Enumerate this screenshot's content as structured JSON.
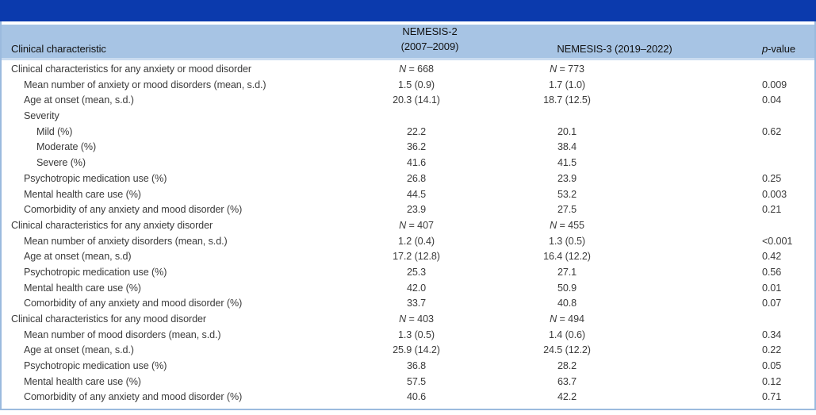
{
  "colors": {
    "title_bar_blue": "#0b3aad",
    "header_blue": "#a7c4e4",
    "frame_border_blue": "#9bbade",
    "header_underline_blue": "#cbdcf0",
    "body_text": "#3b3b3b"
  },
  "table": {
    "header": {
      "characteristic": "Clinical characteristic",
      "nemesis2_line1": "NEMESIS-2",
      "nemesis2_line2": "(2007–2009)",
      "nemesis3": "NEMESIS-3 (2019–2022)",
      "p_italic": "p",
      "p_rest": "-value"
    },
    "rows": [
      {
        "label": "Clinical characteristics for any anxiety or mood disorder",
        "indent": 0,
        "nemesis2": "N = 668",
        "nemesis3": "N = 773",
        "p_value": ""
      },
      {
        "label": "Mean number of anxiety or mood disorders (mean, s.d.)",
        "indent": 1,
        "nemesis2": "1.5 (0.9)",
        "nemesis3": "1.7 (1.0)",
        "p_value": "0.009"
      },
      {
        "label": "Age at onset (mean, s.d.)",
        "indent": 1,
        "nemesis2": "20.3 (14.1)",
        "nemesis3": "18.7 (12.5)",
        "p_value": "0.04"
      },
      {
        "label": "Severity",
        "indent": 1,
        "nemesis2": "",
        "nemesis3": "",
        "p_value": ""
      },
      {
        "label": "Mild (%)",
        "indent": 2,
        "nemesis2": "22.2",
        "nemesis3": "20.1",
        "p_value": "0.62"
      },
      {
        "label": "Moderate (%)",
        "indent": 2,
        "nemesis2": "36.2",
        "nemesis3": "38.4",
        "p_value": ""
      },
      {
        "label": "Severe (%)",
        "indent": 2,
        "nemesis2": "41.6",
        "nemesis3": "41.5",
        "p_value": ""
      },
      {
        "label": "Psychotropic medication use (%)",
        "indent": 1,
        "nemesis2": "26.8",
        "nemesis3": "23.9",
        "p_value": "0.25"
      },
      {
        "label": "Mental health care use (%)",
        "indent": 1,
        "nemesis2": "44.5",
        "nemesis3": "53.2",
        "p_value": "0.003"
      },
      {
        "label": "Comorbidity of any anxiety and mood disorder (%)",
        "indent": 1,
        "nemesis2": "23.9",
        "nemesis3": "27.5",
        "p_value": "0.21"
      },
      {
        "label": "Clinical characteristics for any anxiety disorder",
        "indent": 0,
        "nemesis2": "N = 407",
        "nemesis3": "N = 455",
        "p_value": ""
      },
      {
        "label": "Mean number of anxiety disorders (mean, s.d.)",
        "indent": 1,
        "nemesis2": "1.2 (0.4)",
        "nemesis3": "1.3 (0.5)",
        "p_value": "<0.001"
      },
      {
        "label": "Age at onset (mean, s.d)",
        "indent": 1,
        "nemesis2": "17.2 (12.8)",
        "nemesis3": "16.4 (12.2)",
        "p_value": "0.42"
      },
      {
        "label": "Psychotropic medication use (%)",
        "indent": 1,
        "nemesis2": "25.3",
        "nemesis3": "27.1",
        "p_value": "0.56"
      },
      {
        "label": "Mental health care use (%)",
        "indent": 1,
        "nemesis2": "42.0",
        "nemesis3": "50.9",
        "p_value": "0.01"
      },
      {
        "label": "Comorbidity of any anxiety and mood disorder (%)",
        "indent": 1,
        "nemesis2": "33.7",
        "nemesis3": "40.8",
        "p_value": "0.07"
      },
      {
        "label": "Clinical characteristics for any mood disorder",
        "indent": 0,
        "nemesis2": "N = 403",
        "nemesis3": "N = 494",
        "p_value": ""
      },
      {
        "label": "Mean number of mood disorders (mean, s.d.)",
        "indent": 1,
        "nemesis2": "1.3 (0.5)",
        "nemesis3": "1.4 (0.6)",
        "p_value": "0.34"
      },
      {
        "label": "Age at onset (mean, s.d.)",
        "indent": 1,
        "nemesis2": "25.9 (14.2)",
        "nemesis3": "24.5 (12.2)",
        "p_value": "0.22"
      },
      {
        "label": "Psychotropic medication use (%)",
        "indent": 1,
        "nemesis2": "36.8",
        "nemesis3": "28.2",
        "p_value": "0.05"
      },
      {
        "label": "Mental health care use (%)",
        "indent": 1,
        "nemesis2": "57.5",
        "nemesis3": "63.7",
        "p_value": "0.12"
      },
      {
        "label": "Comorbidity of any anxiety and mood disorder (%)",
        "indent": 1,
        "nemesis2": "40.6",
        "nemesis3": "42.2",
        "p_value": "0.71"
      }
    ]
  }
}
